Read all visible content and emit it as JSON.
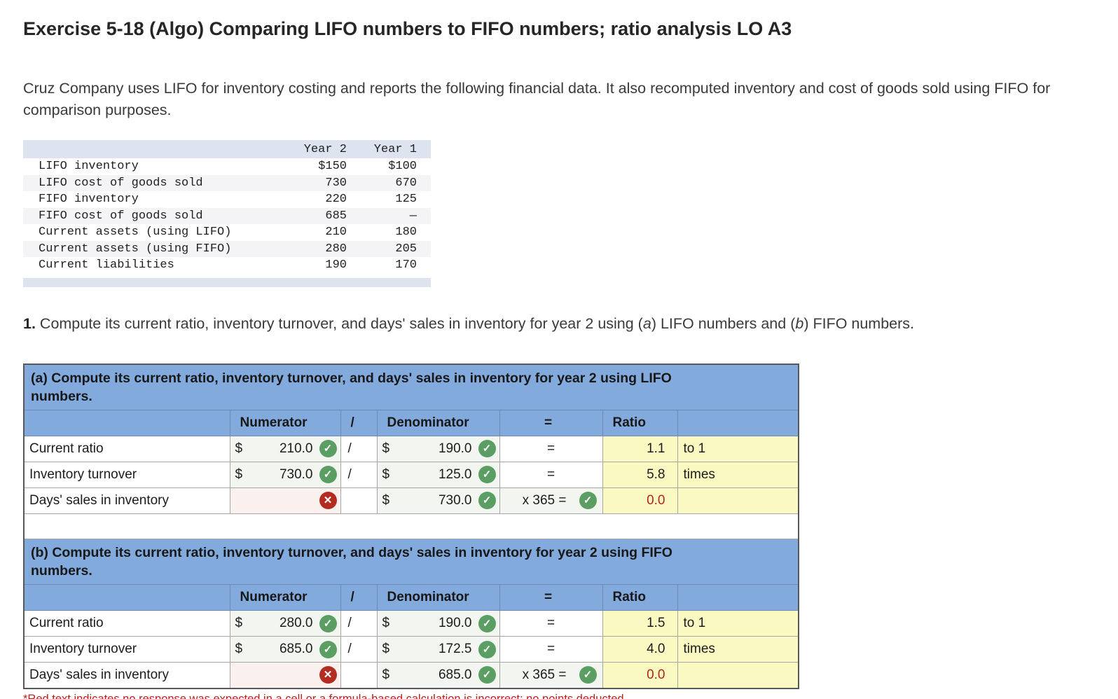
{
  "page": {
    "title": "Exercise 5-18 (Algo) Comparing LIFO numbers to FIFO numbers; ratio analysis LO A3",
    "intro": "Cruz Company uses LIFO for inventory costing and reports the following financial data. It also recomputed inventory and cost of goods sold using FIFO for comparison purposes.",
    "instruction": {
      "number": "1.",
      "segments": [
        {
          "text": " Compute its current ratio, inventory turnover, and days' sales in inventory for year 2 using (",
          "italic": false
        },
        {
          "text": "a",
          "italic": true
        },
        {
          "text": ") LIFO numbers and (",
          "italic": false
        },
        {
          "text": "b",
          "italic": true
        },
        {
          "text": ") FIFO numbers.",
          "italic": false
        }
      ]
    },
    "footnote": "*Red text indicates no response was expected in a cell or a formula-based calculation is incorrect; no points deducted."
  },
  "icons": {
    "correct": "✓",
    "incorrect": "✕"
  },
  "colors": {
    "header_blue": "#83aadd",
    "result_yellow": "#fbf9c2",
    "input_green_bg": "#f3f6f0",
    "error_pink_bg": "#faf1ef",
    "correct_green": "#5a9e63",
    "incorrect_red": "#b42b22",
    "alert_text_red": "#b5231d",
    "exhibit_band": "#dde3ef"
  },
  "data_table": {
    "col_headers": [
      "Year 2",
      "Year 1"
    ],
    "rows": [
      {
        "label": "LIFO inventory",
        "y2": "$150",
        "y1": "$100"
      },
      {
        "label": "LIFO cost of goods sold",
        "y2": "730",
        "y1": "670"
      },
      {
        "label": "FIFO inventory",
        "y2": "220",
        "y1": "125"
      },
      {
        "label": "FIFO cost of goods sold",
        "y2": "685",
        "y1": "—"
      },
      {
        "label": "Current assets (using LIFO)",
        "y2": "210",
        "y1": "180"
      },
      {
        "label": "Current assets (using FIFO)",
        "y2": "280",
        "y1": "205"
      },
      {
        "label": "Current liabilities",
        "y2": "190",
        "y1": "170"
      }
    ]
  },
  "worksheet": {
    "columns": {
      "numerator": "Numerator",
      "slash": "/",
      "denominator": "Denominator",
      "equals": "=",
      "ratio": "Ratio"
    },
    "sections": [
      {
        "heading": "(a) Compute its current ratio, inventory turnover, and days' sales in inventory for year 2 using LIFO numbers.",
        "rows": [
          {
            "label": "Current ratio",
            "numerator": {
              "dollar": "$",
              "value": "210.0",
              "status": "correct"
            },
            "slash": "/",
            "denominator": {
              "dollar": "$",
              "value": "190.0",
              "status": "correct"
            },
            "equals": {
              "text": "=",
              "status": ""
            },
            "ratio": {
              "value": "1.1",
              "alert": false
            },
            "unit": "to 1"
          },
          {
            "label": "Inventory turnover",
            "numerator": {
              "dollar": "$",
              "value": "730.0",
              "status": "correct"
            },
            "slash": "/",
            "denominator": {
              "dollar": "$",
              "value": "125.0",
              "status": "correct"
            },
            "equals": {
              "text": "=",
              "status": ""
            },
            "ratio": {
              "value": "5.8",
              "alert": false
            },
            "unit": "times"
          },
          {
            "label": "Days' sales in inventory",
            "numerator": {
              "dollar": "",
              "value": "",
              "status": "incorrect"
            },
            "slash": "",
            "denominator": {
              "dollar": "$",
              "value": "730.0",
              "status": "correct"
            },
            "equals": {
              "text": "x 365 =",
              "status": "correct"
            },
            "ratio": {
              "value": "0.0",
              "alert": true
            },
            "unit": ""
          }
        ]
      },
      {
        "heading": "(b) Compute its current ratio, inventory turnover, and days' sales in inventory for year 2 using FIFO numbers.",
        "rows": [
          {
            "label": "Current ratio",
            "numerator": {
              "dollar": "$",
              "value": "280.0",
              "status": "correct"
            },
            "slash": "/",
            "denominator": {
              "dollar": "$",
              "value": "190.0",
              "status": "correct"
            },
            "equals": {
              "text": "=",
              "status": ""
            },
            "ratio": {
              "value": "1.5",
              "alert": false
            },
            "unit": "to 1"
          },
          {
            "label": "Inventory turnover",
            "numerator": {
              "dollar": "$",
              "value": "685.0",
              "status": "correct"
            },
            "slash": "/",
            "denominator": {
              "dollar": "$",
              "value": "172.5",
              "status": "correct"
            },
            "equals": {
              "text": "=",
              "status": ""
            },
            "ratio": {
              "value": "4.0",
              "alert": false
            },
            "unit": "times"
          },
          {
            "label": "Days' sales in inventory",
            "numerator": {
              "dollar": "",
              "value": "",
              "status": "incorrect"
            },
            "slash": "",
            "denominator": {
              "dollar": "$",
              "value": "685.0",
              "status": "correct"
            },
            "equals": {
              "text": "x 365 =",
              "status": "correct"
            },
            "ratio": {
              "value": "0.0",
              "alert": true
            },
            "unit": ""
          }
        ]
      }
    ]
  }
}
